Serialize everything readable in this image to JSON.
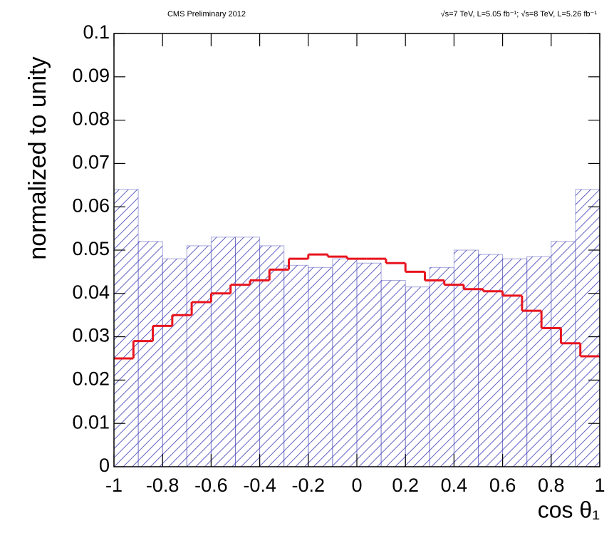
{
  "chart_data": {
    "type": "histogram",
    "title": "CMS Preliminary 2012",
    "subtitle": "√s=7 TeV, L=5.05 fb⁻¹;  √s=8 TeV, L=5.26 fb⁻¹",
    "x_label": "cos θ₁",
    "y_label": "normalized to unity",
    "xlim": [
      -1,
      1
    ],
    "ylim": [
      0,
      0.1
    ],
    "xticks": [
      -1,
      -0.8,
      -0.6,
      -0.4,
      -0.2,
      0,
      0.2,
      0.4,
      0.6,
      0.8,
      1
    ],
    "yticks": [
      0,
      0.01,
      0.02,
      0.03,
      0.04,
      0.05,
      0.06,
      0.07,
      0.08,
      0.09,
      0.1
    ],
    "series": [
      {
        "style": "hatched",
        "color": "#3b3bb5",
        "bins": [
          -1,
          -0.9,
          -0.8,
          -0.7,
          -0.6,
          -0.5,
          -0.4,
          -0.3,
          -0.2,
          -0.1,
          0,
          0.1,
          0.2,
          0.3,
          0.4,
          0.5,
          0.6,
          0.7,
          0.8,
          0.9,
          1
        ],
        "values": [
          0.064,
          0.052,
          0.048,
          0.051,
          0.053,
          0.053,
          0.051,
          0.0465,
          0.046,
          0.048,
          0.047,
          0.043,
          0.0415,
          0.046,
          0.05,
          0.049,
          0.048,
          0.0485,
          0.052,
          0.064
        ]
      },
      {
        "style": "line",
        "color": "#e8141e",
        "bins": [
          -1,
          -0.92,
          -0.84,
          -0.76,
          -0.68,
          -0.6,
          -0.52,
          -0.44,
          -0.36,
          -0.28,
          -0.2,
          -0.12,
          -0.04,
          0.04,
          0.12,
          0.2,
          0.28,
          0.36,
          0.44,
          0.52,
          0.6,
          0.68,
          0.76,
          0.84,
          0.92,
          1
        ],
        "values": [
          0.025,
          0.029,
          0.0325,
          0.035,
          0.038,
          0.04,
          0.042,
          0.043,
          0.0455,
          0.048,
          0.049,
          0.0485,
          0.048,
          0.048,
          0.047,
          0.045,
          0.043,
          0.042,
          0.041,
          0.0405,
          0.0395,
          0.036,
          0.032,
          0.0285,
          0.0255
        ]
      }
    ]
  }
}
